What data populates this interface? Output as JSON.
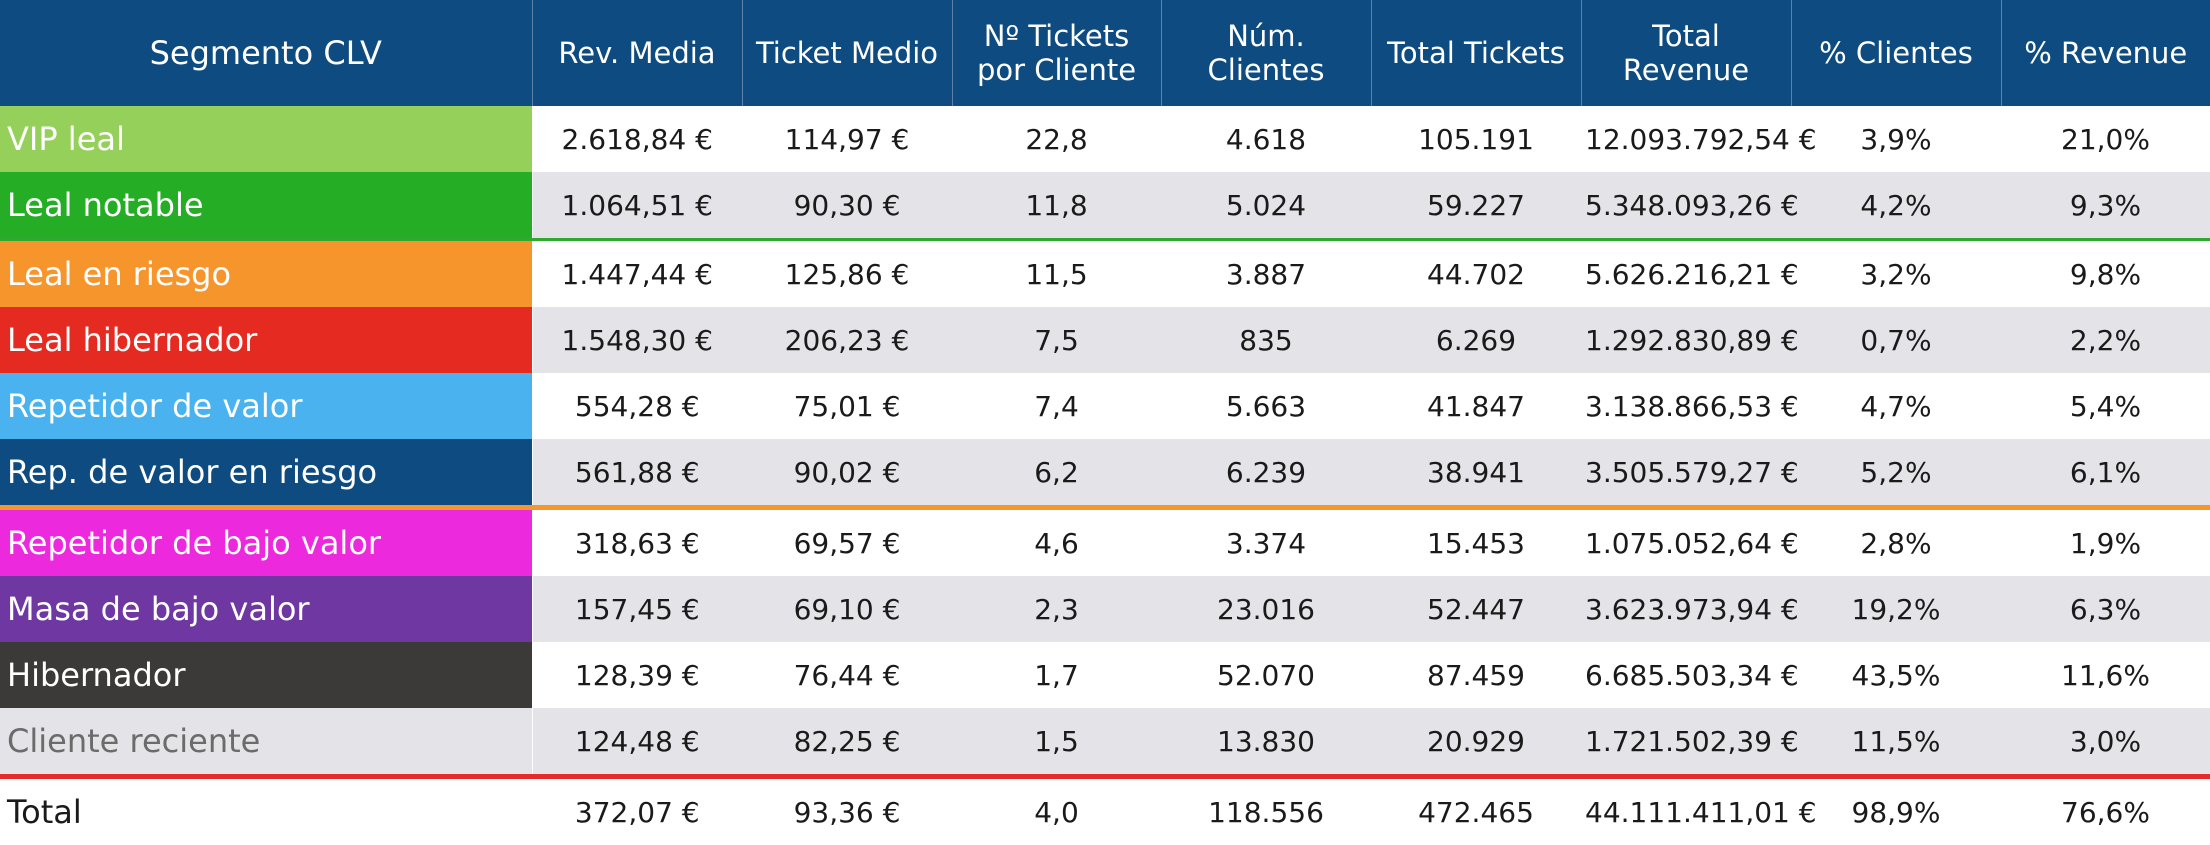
{
  "table": {
    "headers": [
      "Segmento CLV",
      "Rev. Media",
      "Ticket Medio",
      "Nº Tickets por Cliente",
      "Núm. Clientes",
      "Total Tickets",
      "Total Revenue",
      "% Clientes",
      "% Revenue"
    ],
    "rows": [
      {
        "segment": "VIP leal",
        "color": "#94d05a",
        "cells": [
          "2.618,84 €",
          "114,97 €",
          "22,8",
          "4.618",
          "105.191",
          "12.093.792,54 €",
          "3,9%",
          "21,0%"
        ]
      },
      {
        "segment": "Leal notable",
        "color": "#26ad26",
        "cells": [
          "1.064,51 €",
          "90,30 €",
          "11,8",
          "5.024",
          "59.227",
          "5.348.093,26 €",
          "4,2%",
          "9,3%"
        ]
      },
      {
        "segment": "Leal en riesgo",
        "color": "#f7952d",
        "cells": [
          "1.447,44 €",
          "125,86 €",
          "11,5",
          "3.887",
          "44.702",
          "5.626.216,21 €",
          "3,2%",
          "9,8%"
        ]
      },
      {
        "segment": "Leal hibernador",
        "color": "#e52a22",
        "cells": [
          "1.548,30 €",
          "206,23 €",
          "7,5",
          "835",
          "6.269",
          "1.292.830,89 €",
          "0,7%",
          "2,2%"
        ]
      },
      {
        "segment": "Repetidor de valor",
        "color": "#4ab3ef",
        "cells": [
          "554,28 €",
          "75,01 €",
          "7,4",
          "5.663",
          "41.847",
          "3.138.866,53 €",
          "4,7%",
          "5,4%"
        ]
      },
      {
        "segment": "Rep. de valor en riesgo",
        "color": "#0d4b80",
        "cells": [
          "561,88 €",
          "90,02 €",
          "6,2",
          "6.239",
          "38.941",
          "3.505.579,27 €",
          "5,2%",
          "6,1%"
        ]
      },
      {
        "segment": "Repetidor de bajo valor",
        "color": "#ec29dc",
        "cells": [
          "318,63 €",
          "69,57 €",
          "4,6",
          "3.374",
          "15.453",
          "1.075.052,64 €",
          "2,8%",
          "1,9%"
        ]
      },
      {
        "segment": "Masa de bajo valor",
        "color": "#6f37a2",
        "cells": [
          "157,45 €",
          "69,10 €",
          "2,3",
          "23.016",
          "52.447",
          "3.623.973,94 €",
          "19,2%",
          "6,3%"
        ]
      },
      {
        "segment": "Hibernador",
        "color": "#3b3a38",
        "cells": [
          "128,39 €",
          "76,44 €",
          "1,7",
          "52.070",
          "87.459",
          "6.685.503,34 €",
          "43,5%",
          "11,6%"
        ]
      },
      {
        "segment": "Cliente reciente",
        "color": "#e3e3e8",
        "cells": [
          "124,48 €",
          "82,25 €",
          "1,5",
          "13.830",
          "20.929",
          "1.721.502,39 €",
          "11,5%",
          "3,0%"
        ]
      }
    ],
    "total": {
      "segment": "Total",
      "cells": [
        "372,07 €",
        "93,36 €",
        "4,0",
        "118.556",
        "472.465",
        "44.111.411,01 €",
        "98,9%",
        "76,6%"
      ]
    }
  }
}
